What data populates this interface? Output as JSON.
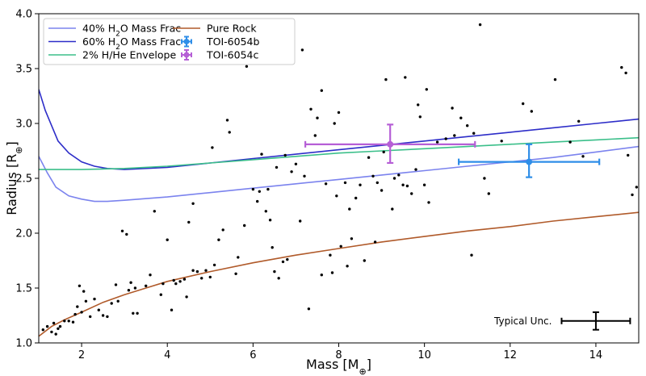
{
  "chart_data": {
    "type": "scatter",
    "xlabel": "Mass [M⊕]",
    "ylabel": "Radius [R⊕]",
    "xlim": [
      1,
      15
    ],
    "ylim": [
      1.0,
      4.0
    ],
    "x_ticks": [
      2,
      4,
      6,
      8,
      10,
      12,
      14
    ],
    "y_ticks": [
      1.0,
      1.5,
      2.0,
      2.5,
      3.0,
      3.5,
      4.0
    ],
    "legend_position": "top-left",
    "curves": [
      {
        "name": "40% H₂O Mass Frac",
        "color": "#7b83ee",
        "x": [
          1.0,
          1.2,
          1.4,
          1.7,
          2.0,
          2.3,
          2.6,
          3.0,
          4.0,
          5.0,
          6.0,
          7.0,
          8.0,
          9.0,
          10.0,
          11.0,
          12.0,
          13.0,
          14.0,
          15.0
        ],
        "y": [
          2.7,
          2.55,
          2.42,
          2.34,
          2.31,
          2.29,
          2.29,
          2.3,
          2.33,
          2.37,
          2.41,
          2.45,
          2.49,
          2.53,
          2.57,
          2.61,
          2.65,
          2.69,
          2.74,
          2.79
        ]
      },
      {
        "name": "60% H₂O Mass Frac",
        "color": "#2d2dc8",
        "x": [
          1.0,
          1.15,
          1.3,
          1.45,
          1.7,
          2.0,
          2.3,
          2.6,
          3.0,
          4.0,
          5.0,
          6.0,
          7.0,
          8.0,
          9.0,
          10.0,
          11.0,
          12.0,
          13.0,
          14.0,
          15.0
        ],
        "y": [
          3.31,
          3.12,
          2.98,
          2.84,
          2.73,
          2.65,
          2.61,
          2.59,
          2.58,
          2.6,
          2.64,
          2.68,
          2.72,
          2.76,
          2.8,
          2.84,
          2.88,
          2.92,
          2.96,
          3.0,
          3.04
        ]
      },
      {
        "name": "2% H/He Envelope",
        "color": "#3bbf8a",
        "x": [
          1.0,
          1.5,
          2.0,
          3.0,
          4.0,
          5.0,
          6.0,
          7.0,
          8.0,
          9.0,
          10.0,
          11.0,
          12.0,
          13.0,
          14.0,
          15.0
        ],
        "y": [
          2.58,
          2.58,
          2.58,
          2.59,
          2.61,
          2.64,
          2.67,
          2.7,
          2.73,
          2.75,
          2.77,
          2.79,
          2.81,
          2.83,
          2.85,
          2.87
        ]
      },
      {
        "name": "Pure Rock",
        "color": "#b05a2a",
        "x": [
          1.0,
          1.3,
          1.6,
          2.0,
          2.5,
          3.0,
          3.5,
          4.0,
          5.0,
          6.0,
          7.0,
          8.0,
          9.0,
          10.0,
          11.0,
          12.0,
          13.0,
          14.0,
          15.0
        ],
        "y": [
          1.06,
          1.15,
          1.21,
          1.28,
          1.37,
          1.44,
          1.5,
          1.56,
          1.65,
          1.73,
          1.8,
          1.86,
          1.92,
          1.97,
          2.02,
          2.06,
          2.11,
          2.15,
          2.19
        ]
      }
    ],
    "planets": [
      {
        "name": "TOI-6054b",
        "color": "#2f8ee8",
        "x": 12.44,
        "y": 2.65,
        "xerr": [
          1.64,
          1.64
        ],
        "yerr": [
          0.14,
          0.16
        ]
      },
      {
        "name": "TOI-6054c",
        "color": "#b65fd6",
        "x": 9.2,
        "y": 2.81,
        "xerr": [
          1.98,
          1.98
        ],
        "yerr": [
          0.17,
          0.18
        ]
      }
    ],
    "typical_uncertainty": {
      "label": "Typical Unc.",
      "x": 14.0,
      "y": 1.2,
      "xerr": 0.8,
      "yerr": 0.08,
      "color": "#000000"
    },
    "scatter_points": [
      [
        1.1,
        1.12
      ],
      [
        1.2,
        1.15
      ],
      [
        1.3,
        1.1
      ],
      [
        1.35,
        1.18
      ],
      [
        1.4,
        1.08
      ],
      [
        1.45,
        1.13
      ],
      [
        1.5,
        1.15
      ],
      [
        1.6,
        1.2
      ],
      [
        1.7,
        1.2
      ],
      [
        1.8,
        1.19
      ],
      [
        1.85,
        1.26
      ],
      [
        1.9,
        1.33
      ],
      [
        1.95,
        1.52
      ],
      [
        2.0,
        1.28
      ],
      [
        2.05,
        1.47
      ],
      [
        2.1,
        1.38
      ],
      [
        2.2,
        1.24
      ],
      [
        2.3,
        1.4
      ],
      [
        2.4,
        1.3
      ],
      [
        2.5,
        1.25
      ],
      [
        2.6,
        1.24
      ],
      [
        2.7,
        1.36
      ],
      [
        2.8,
        1.53
      ],
      [
        2.85,
        1.38
      ],
      [
        2.95,
        2.02
      ],
      [
        3.05,
        1.99
      ],
      [
        3.1,
        1.48
      ],
      [
        3.15,
        1.55
      ],
      [
        3.2,
        1.27
      ],
      [
        3.25,
        1.5
      ],
      [
        3.3,
        1.27
      ],
      [
        3.5,
        1.52
      ],
      [
        3.6,
        1.62
      ],
      [
        3.7,
        2.2
      ],
      [
        3.85,
        1.44
      ],
      [
        3.9,
        1.54
      ],
      [
        4.0,
        1.94
      ],
      [
        4.1,
        1.3
      ],
      [
        4.15,
        1.57
      ],
      [
        4.2,
        1.54
      ],
      [
        4.3,
        1.56
      ],
      [
        4.4,
        1.58
      ],
      [
        4.45,
        1.42
      ],
      [
        4.5,
        2.1
      ],
      [
        4.6,
        1.66
      ],
      [
        4.6,
        2.27
      ],
      [
        4.7,
        1.65
      ],
      [
        4.8,
        1.59
      ],
      [
        4.9,
        1.66
      ],
      [
        5.0,
        1.6
      ],
      [
        5.05,
        2.78
      ],
      [
        5.1,
        1.71
      ],
      [
        5.2,
        1.94
      ],
      [
        5.3,
        2.03
      ],
      [
        5.4,
        3.03
      ],
      [
        5.45,
        2.92
      ],
      [
        5.6,
        1.63
      ],
      [
        5.65,
        1.78
      ],
      [
        5.8,
        2.07
      ],
      [
        5.85,
        3.52
      ],
      [
        6.0,
        2.4
      ],
      [
        6.1,
        2.29
      ],
      [
        6.15,
        2.38
      ],
      [
        6.2,
        2.72
      ],
      [
        6.3,
        2.2
      ],
      [
        6.35,
        2.4
      ],
      [
        6.4,
        2.12
      ],
      [
        6.45,
        1.87
      ],
      [
        6.5,
        1.65
      ],
      [
        6.55,
        2.6
      ],
      [
        6.6,
        1.59
      ],
      [
        6.7,
        1.74
      ],
      [
        6.75,
        2.71
      ],
      [
        6.8,
        1.76
      ],
      [
        6.9,
        2.56
      ],
      [
        7.0,
        2.63
      ],
      [
        7.1,
        2.11
      ],
      [
        7.15,
        3.67
      ],
      [
        7.2,
        2.52
      ],
      [
        7.3,
        1.31
      ],
      [
        7.35,
        3.13
      ],
      [
        7.45,
        2.89
      ],
      [
        7.5,
        3.05
      ],
      [
        7.6,
        3.3
      ],
      [
        7.6,
        1.62
      ],
      [
        7.7,
        2.45
      ],
      [
        7.8,
        1.8
      ],
      [
        7.85,
        1.64
      ],
      [
        7.9,
        3.0
      ],
      [
        7.95,
        2.34
      ],
      [
        8.0,
        3.1
      ],
      [
        8.05,
        1.88
      ],
      [
        8.15,
        2.46
      ],
      [
        8.2,
        1.7
      ],
      [
        8.25,
        2.22
      ],
      [
        8.3,
        1.95
      ],
      [
        8.4,
        2.32
      ],
      [
        8.5,
        2.44
      ],
      [
        8.6,
        1.75
      ],
      [
        8.7,
        2.69
      ],
      [
        8.8,
        2.52
      ],
      [
        8.85,
        1.92
      ],
      [
        8.9,
        2.46
      ],
      [
        9.0,
        2.39
      ],
      [
        9.05,
        2.74
      ],
      [
        9.1,
        3.4
      ],
      [
        9.2,
        2.8
      ],
      [
        9.25,
        2.22
      ],
      [
        9.3,
        2.5
      ],
      [
        9.4,
        2.53
      ],
      [
        9.5,
        2.44
      ],
      [
        9.55,
        3.42
      ],
      [
        9.6,
        2.43
      ],
      [
        9.7,
        2.36
      ],
      [
        9.8,
        2.58
      ],
      [
        9.85,
        3.17
      ],
      [
        9.9,
        3.06
      ],
      [
        10.0,
        2.44
      ],
      [
        10.05,
        3.31
      ],
      [
        10.1,
        2.28
      ],
      [
        10.3,
        2.83
      ],
      [
        10.5,
        2.86
      ],
      [
        10.65,
        3.14
      ],
      [
        10.7,
        2.89
      ],
      [
        10.85,
        3.05
      ],
      [
        11.0,
        2.98
      ],
      [
        11.1,
        1.8
      ],
      [
        11.15,
        2.91
      ],
      [
        11.3,
        3.9
      ],
      [
        11.4,
        2.5
      ],
      [
        11.5,
        2.36
      ],
      [
        11.8,
        2.84
      ],
      [
        12.3,
        3.18
      ],
      [
        12.5,
        3.11
      ],
      [
        13.05,
        3.4
      ],
      [
        13.4,
        2.83
      ],
      [
        13.6,
        3.02
      ],
      [
        13.7,
        2.7
      ],
      [
        14.6,
        3.51
      ],
      [
        14.7,
        3.46
      ],
      [
        14.75,
        2.71
      ],
      [
        14.85,
        2.35
      ],
      [
        14.95,
        2.42
      ]
    ]
  }
}
